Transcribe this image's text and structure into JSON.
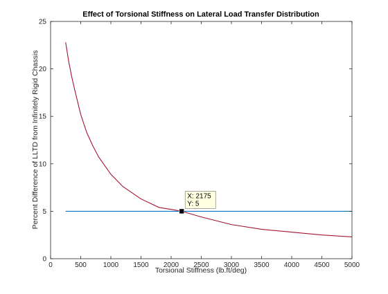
{
  "chart_data": {
    "type": "line",
    "title": "Effect of Torsional Stiffness on Lateral Load Transfer Distribution",
    "xlabel": "Torsional Stiffness (lb.ft/deg)",
    "ylabel": "Percent Difference of LLTD from Infinitely Rigid Chassis",
    "xlim": [
      0,
      5000
    ],
    "ylim": [
      0,
      25
    ],
    "xticks": [
      0,
      500,
      1000,
      1500,
      2000,
      2500,
      3000,
      3500,
      4000,
      4500,
      5000
    ],
    "yticks": [
      0,
      5,
      10,
      15,
      20,
      25
    ],
    "grid": false,
    "series": [
      {
        "color": "#a2142f",
        "x": [
          250,
          300,
          350,
          400,
          500,
          600,
          700,
          800,
          1000,
          1200,
          1500,
          1800,
          2000,
          2175,
          2500,
          3000,
          3500,
          4000,
          4500,
          5000
        ],
        "y": [
          22.8,
          20.8,
          19.2,
          17.8,
          15.2,
          13.3,
          11.9,
          10.7,
          8.9,
          7.6,
          6.3,
          5.4,
          5.2,
          5.0,
          4.4,
          3.6,
          3.1,
          2.8,
          2.5,
          2.3
        ]
      },
      {
        "color": "#0072bd",
        "x": [
          250,
          5000
        ],
        "y": [
          5,
          5
        ]
      }
    ],
    "datatip": {
      "x": 2175,
      "y": 5,
      "x_text": "X: 2175",
      "y_text": "Y: 5"
    }
  }
}
